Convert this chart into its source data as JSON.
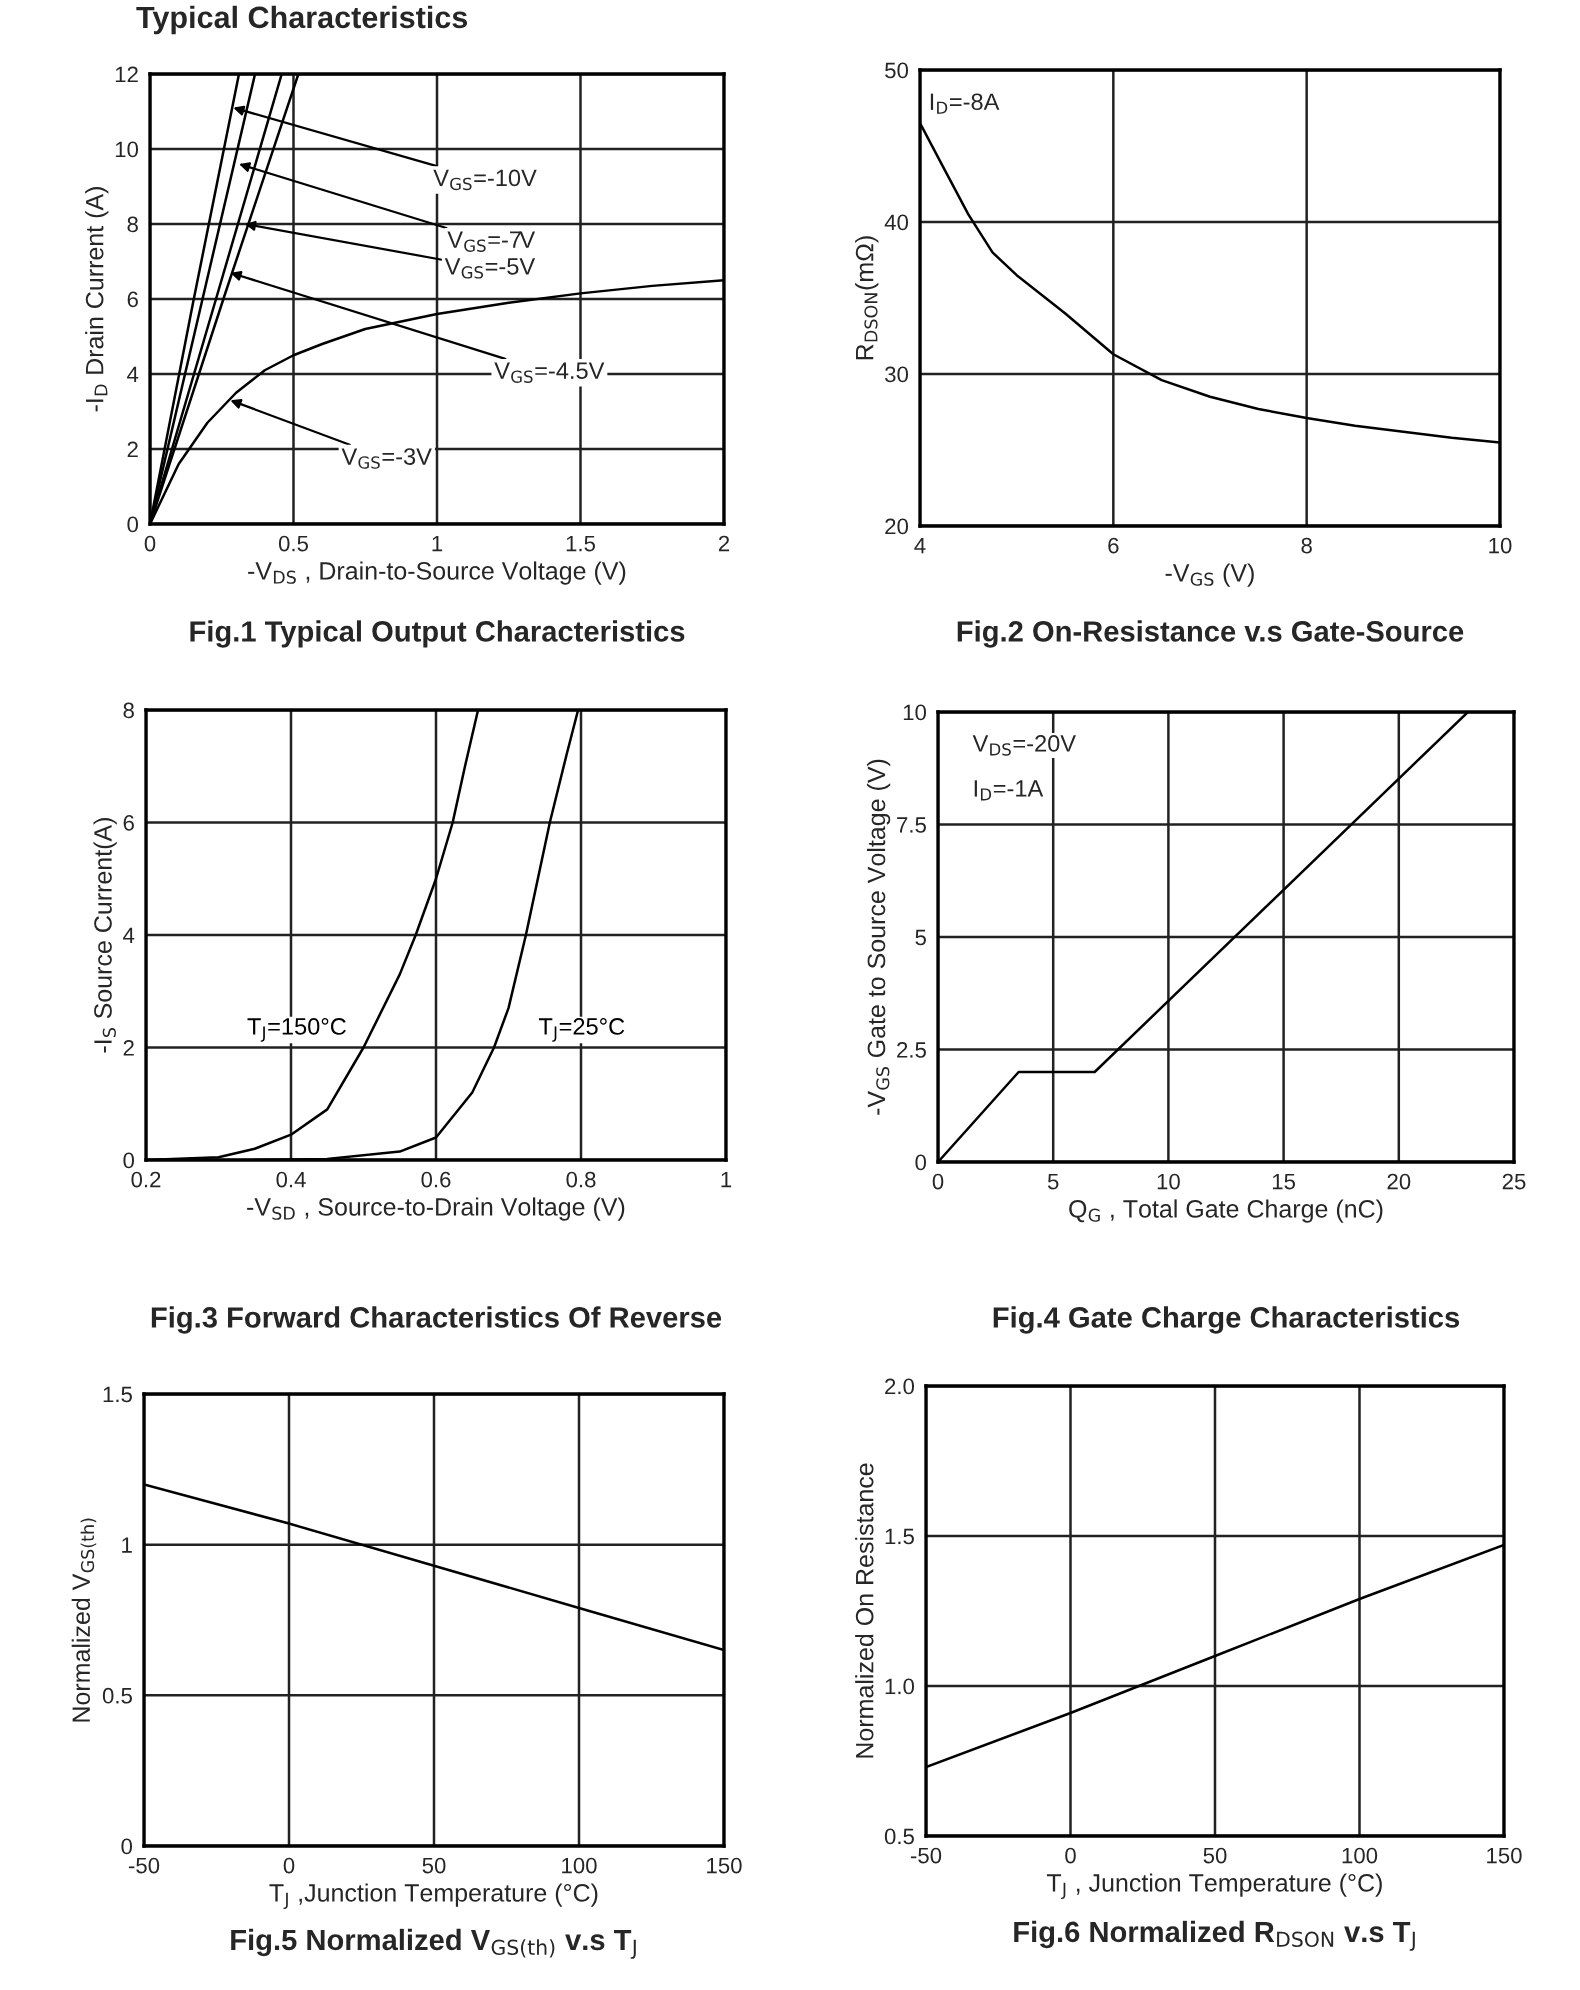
{
  "chart_data": [
    {
      "type": "line",
      "title": "Fig.1 Typical Output Characteristics",
      "xlabel": "-V$_{DS}$ , Drain-to-Source Voltage (V)",
      "ylabel": "-I$_{D}$ Drain Current (A)",
      "xlim": [
        0,
        2
      ],
      "ylim": [
        0,
        12
      ],
      "xticks": [
        0,
        0.5,
        1,
        1.5,
        2
      ],
      "yticks": [
        0,
        2,
        4,
        6,
        8,
        10,
        12
      ],
      "grid": true,
      "legend": false,
      "annotations": [
        "Typical Characteristics",
        {
          "text": "V$_{GS}$=-10V",
          "x": 0.29,
          "y": 11.1
        },
        {
          "text": "V$_{GS}$=-7V",
          "x": 0.31,
          "y": 9.6
        },
        {
          "text": "V$_{GS}$=-5V",
          "x": 0.33,
          "y": 8.0
        },
        {
          "text": "V$_{GS}$=-4.5V",
          "x": 0.28,
          "y": 6.7
        },
        {
          "text": "V$_{GS}$=-3V",
          "x": 0.28,
          "y": 3.3
        }
      ],
      "series": [
        {
          "color": "#000000",
          "x": [
            0,
            0.15,
            0.31
          ],
          "values": [
            0,
            5.9,
            12
          ]
        },
        {
          "color": "#000000",
          "x": [
            0,
            0.18,
            0.366
          ],
          "values": [
            0,
            5.9,
            12
          ]
        },
        {
          "color": "#000000",
          "x": [
            0,
            0.23,
            0.459
          ],
          "values": [
            0,
            6.0,
            12
          ]
        },
        {
          "color": "#000000",
          "x": [
            0,
            0.26,
            0.517
          ],
          "values": [
            0,
            6.1,
            12
          ]
        },
        {
          "color": "#000000",
          "x": [
            0,
            0.05,
            0.1,
            0.2,
            0.3,
            0.4,
            0.5,
            0.6,
            0.75,
            1.0,
            1.25,
            1.5,
            1.75,
            2.0
          ],
          "values": [
            0,
            0.8,
            1.6,
            2.7,
            3.5,
            4.1,
            4.5,
            4.8,
            5.2,
            5.6,
            5.9,
            6.15,
            6.35,
            6.5
          ]
        }
      ]
    },
    {
      "type": "line",
      "title": "Fig.2 On-Resistance v.s Gate-Source",
      "xlabel": "-V$_{GS}$ (V)",
      "ylabel": "R$_{DSON}$(mΩ)",
      "xlim": [
        4,
        10
      ],
      "ylim": [
        20,
        50
      ],
      "xticks": [
        4,
        6,
        8,
        10
      ],
      "yticks": [
        20,
        30,
        40,
        50
      ],
      "grid": true,
      "legend": false,
      "annotations": [
        "I$_{D}$=-8A"
      ],
      "series": [
        {
          "color": "#000000",
          "x": [
            4,
            4.25,
            4.5,
            4.75,
            5,
            5.5,
            6,
            6.5,
            7,
            7.5,
            8,
            8.5,
            9,
            9.5,
            10
          ],
          "values": [
            46.5,
            43.5,
            40.5,
            38,
            36.5,
            34,
            31.3,
            29.6,
            28.5,
            27.7,
            27.1,
            26.6,
            26.2,
            25.8,
            25.5
          ]
        }
      ]
    },
    {
      "type": "line",
      "title": "Fig.3 Forward Characteristics Of Reverse",
      "xlabel": "-V$_{SD}$ , Source-to-Drain Voltage (V)",
      "ylabel": "-I$_{S}$ Source Current(A)",
      "xlim": [
        0.2,
        1
      ],
      "ylim": [
        0,
        8
      ],
      "xticks": [
        0.2,
        0.4,
        0.6,
        0.8,
        1
      ],
      "yticks": [
        0,
        2,
        4,
        6,
        8
      ],
      "grid": true,
      "legend": false,
      "series": [
        {
          "name": "T$_{J}$=150°C",
          "color": "#000000",
          "x": [
            0.2,
            0.3,
            0.35,
            0.4,
            0.45,
            0.5,
            0.55,
            0.572,
            0.6,
            0.623,
            0.64,
            0.658
          ],
          "values": [
            0,
            0.05,
            0.2,
            0.45,
            0.9,
            2.0,
            3.3,
            4.0,
            5.0,
            6.0,
            7.0,
            8.0
          ]
        },
        {
          "name": "T$_{J}$=25°C",
          "color": "#000000",
          "x": [
            0.35,
            0.45,
            0.55,
            0.6,
            0.65,
            0.68,
            0.7,
            0.724,
            0.757,
            0.78,
            0.796
          ],
          "values": [
            0,
            0.02,
            0.15,
            0.4,
            1.2,
            2.0,
            2.7,
            4.0,
            6.0,
            7.2,
            8.0
          ]
        }
      ]
    },
    {
      "type": "line",
      "title": "Fig.4 Gate Charge Characteristics",
      "xlabel": "Q$_{G}$ , Total Gate Charge (nC)",
      "ylabel": "-V$_{GS}$ Gate to Source Voltage (V)",
      "xlim": [
        0,
        25
      ],
      "ylim": [
        0,
        10
      ],
      "xticks": [
        0,
        5,
        10,
        15,
        20,
        25
      ],
      "yticks": [
        0,
        2.5,
        5,
        7.5,
        10
      ],
      "grid": true,
      "legend": false,
      "annotations": [
        "V$_{DS}$=-20V",
        "I$_{D}$=-1A"
      ],
      "series": [
        {
          "color": "#000000",
          "x": [
            0,
            3.5,
            6.8,
            23
          ],
          "values": [
            0,
            2,
            2,
            10
          ]
        }
      ]
    },
    {
      "type": "line",
      "title": "Fig.5 Normalized V$_{GS(th)}$ v.s T$_{J}$",
      "xlabel": "T$_{J}$ ,Junction Temperature (°C)",
      "ylabel": "Normalized V$_{GS(th)}$",
      "xlim": [
        -50,
        150
      ],
      "ylim": [
        0,
        1.5
      ],
      "xticks": [
        -50,
        0,
        50,
        100,
        150
      ],
      "yticks": [
        0,
        0.5,
        1,
        1.5
      ],
      "grid": true,
      "legend": false,
      "series": [
        {
          "color": "#000000",
          "x": [
            -50,
            0,
            50,
            100,
            150
          ],
          "values": [
            1.2,
            1.07,
            0.93,
            0.79,
            0.65
          ]
        }
      ]
    },
    {
      "type": "line",
      "title": "Fig.6 Normalized R$_{DSON}$ v.s T$_{J}$",
      "xlabel": "T$_{J}$ , Junction Temperature (°C)",
      "ylabel": "Normalized On Resistance",
      "xlim": [
        -50,
        150
      ],
      "ylim": [
        0.5,
        2.0
      ],
      "xticks": [
        -50,
        0,
        50,
        100,
        150
      ],
      "yticks": [
        {
          "value": 0.5,
          "label": "0.5"
        },
        {
          "value": 1,
          "label": "1.0"
        },
        {
          "value": 1.5,
          "label": "1.5"
        },
        {
          "value": 2,
          "label": "2.0"
        }
      ],
      "grid": true,
      "legend": false,
      "series": [
        {
          "color": "#000000",
          "x": [
            -50,
            0,
            50,
            100,
            150
          ],
          "values": [
            0.73,
            0.91,
            1.1,
            1.29,
            1.47
          ]
        }
      ]
    }
  ]
}
